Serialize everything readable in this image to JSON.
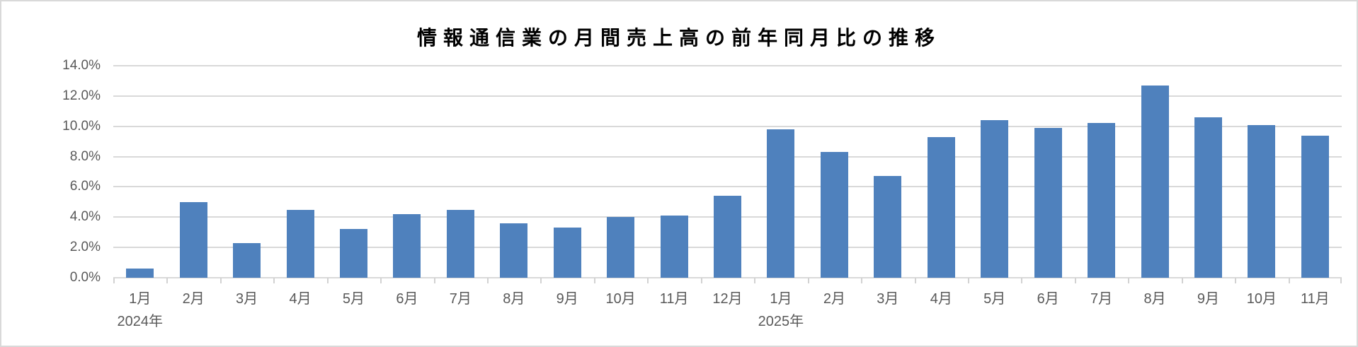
{
  "chart_data": {
    "type": "bar",
    "title": "情報通信業の月間売上高の前年同月比の推移",
    "unit": "%",
    "categories": [
      "1月",
      "2月",
      "3月",
      "4月",
      "5月",
      "6月",
      "7月",
      "8月",
      "9月",
      "10月",
      "11月",
      "12月",
      "1月",
      "2月",
      "3月",
      "4月",
      "5月",
      "6月",
      "7月",
      "8月",
      "9月",
      "10月",
      "11月"
    ],
    "values": [
      0.6,
      5.0,
      2.3,
      4.5,
      3.2,
      4.2,
      4.5,
      3.6,
      3.3,
      4.0,
      4.1,
      5.4,
      9.8,
      8.3,
      6.7,
      9.3,
      10.4,
      9.9,
      10.2,
      12.7,
      10.6,
      10.1,
      9.4
    ],
    "year_groups": [
      {
        "label": "2024年",
        "start_index": 0
      },
      {
        "label": "2025年",
        "start_index": 12
      }
    ],
    "y_axis": {
      "min": 0,
      "max": 14,
      "step": 2,
      "tick_labels": [
        "0.0%",
        "2.0%",
        "4.0%",
        "6.0%",
        "8.0%",
        "10.0%",
        "12.0%",
        "14.0%"
      ]
    },
    "x_axis": {
      "boundary_ticks": 24
    },
    "grid": true,
    "legend": false,
    "colors": {
      "bar": "#4F81BD",
      "gridline": "#D9D9D9",
      "axis_line": "#D9D9D9",
      "tick_label": "#595959",
      "title": "#000000",
      "background": "#FFFFFF",
      "border": "#D9D9D9"
    }
  }
}
